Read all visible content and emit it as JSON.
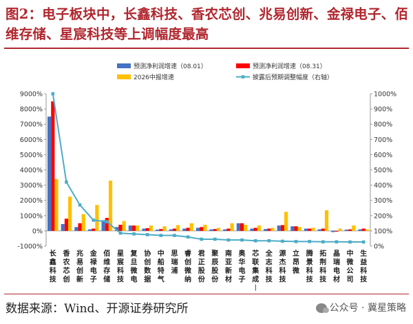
{
  "title": "图2：电子板块中，长鑫科技、香农芯创、兆易创新、金禄电子、佰维存储、星宸科技等上调幅度最高",
  "source": "数据来源：Wind、开源证券研究所",
  "watermark": "公众号 · 冀星策略",
  "colors": {
    "s1": "#4472c4",
    "s2": "#ff0000",
    "s3": "#ffc000",
    "s4": "#4bacc6",
    "title": "#b0262e"
  },
  "chart_data": {
    "type": "bar",
    "categories": [
      "长鑫科技",
      "香农芯创",
      "兆易创新",
      "金禄电子",
      "佰维存储",
      "星宸科技",
      "复旦微电",
      "协创数据",
      "中船特气",
      "思瑞浦",
      "睿创微纳",
      "君正股份",
      "聚辰股份",
      "南亚新材",
      "奥华电子",
      "芯联集成-U",
      "全志科技",
      "源杰科技",
      "立昂微",
      "腾景科技",
      "拓荆科技",
      "晶瑞电材",
      "中微公司",
      "生益科技"
    ],
    "category_labels": [
      "长鑫科技",
      "香农芯创",
      "兆易创新",
      "金禄电子",
      "佰维存储",
      "星宸科技",
      "复旦微电",
      "协创数据",
      "中船特气",
      "思瑞浦",
      "睿创微纳",
      "君正股份",
      "聚辰股份",
      "南亚新材",
      "奥华电子",
      "芯联集成︱",
      "全志科技",
      "源杰科技",
      "立昂微",
      "腾景科技",
      "拓荆科技",
      "晶瑞电材",
      "中微公司",
      "生益科技"
    ],
    "series": [
      {
        "name": "预测净利润增速（08.01）",
        "axis": "left",
        "kind": "bar",
        "values": [
          7500,
          450,
          250,
          100,
          700,
          250,
          350,
          150,
          80,
          100,
          150,
          200,
          100,
          100,
          500,
          150,
          120,
          350,
          300,
          150,
          100,
          -80,
          80,
          100
        ]
      },
      {
        "name": "预测净利润增速（08.31）",
        "axis": "left",
        "kind": "bar",
        "values": [
          8500,
          800,
          500,
          150,
          850,
          400,
          350,
          180,
          120,
          150,
          200,
          250,
          120,
          150,
          500,
          200,
          150,
          380,
          300,
          150,
          150,
          -50,
          100,
          150
        ]
      },
      {
        "name": "2026中报增速",
        "axis": "left",
        "kind": "bar",
        "values": [
          3400,
          2250,
          1100,
          1700,
          3300,
          650,
          350,
          350,
          300,
          380,
          500,
          400,
          200,
          500,
          400,
          350,
          200,
          1250,
          250,
          200,
          1350,
          150,
          350,
          100
        ]
      },
      {
        "name": "披露后预期调整幅度（右轴）",
        "axis": "right",
        "kind": "line",
        "values": [
          1000,
          420,
          270,
          170,
          160,
          85,
          80,
          75,
          70,
          70,
          60,
          45,
          45,
          40,
          40,
          35,
          35,
          32,
          30,
          30,
          28,
          28,
          27,
          27
        ]
      }
    ],
    "yleft": {
      "min": -1000,
      "max": 9000,
      "step": 1000,
      "suffix": "%"
    },
    "yright": {
      "min": 0,
      "max": 1000,
      "step": 100,
      "suffix": "%"
    },
    "legend_position": "top"
  }
}
